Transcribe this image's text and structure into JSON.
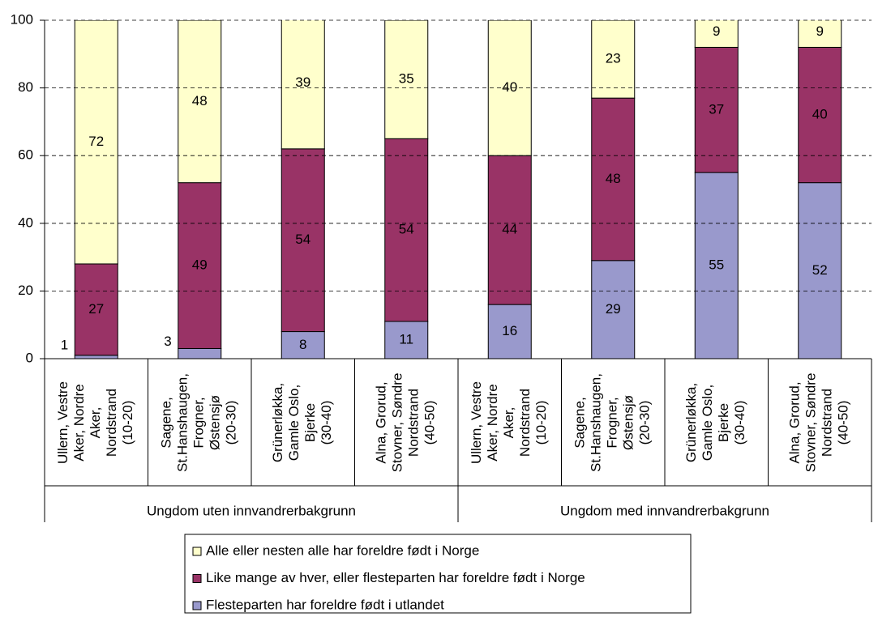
{
  "chart_data": {
    "type": "stacked_bar",
    "groups": [
      "Ungdom uten innvandrerbakgrunn",
      "Ungdom med innvandrerbakgrunn"
    ],
    "categories": [
      [
        "Ullern, Vestre",
        "Aker, Nordre",
        "Aker,",
        "Nordstrand",
        "(10-20)"
      ],
      [
        "Sagene,",
        "St.Hanshaugen,",
        "Frogner,",
        "Østensjø",
        "(20-30)"
      ],
      [
        "Grünerløkka,",
        "Gamle Oslo,",
        "Bjerke",
        "(30-40)"
      ],
      [
        "Alna, Grorud,",
        "Stovner, Søndre",
        "Nordstrand",
        "(40-50)"
      ],
      [
        "Ullern, Vestre",
        "Aker, Nordre",
        "Aker,",
        "Nordstrand",
        "(10-20)"
      ],
      [
        "Sagene,",
        "St.Hanshaugen,",
        "Frogner,",
        "Østensjø",
        "(20-30)"
      ],
      [
        "Grünerløkka,",
        "Gamle Oslo,",
        "Bjerke",
        "(30-40)"
      ],
      [
        "Alna, Grorud,",
        "Stovner, Søndre",
        "Nordstrand",
        "(40-50)"
      ]
    ],
    "series": [
      {
        "name": "Alle eller nesten alle har foreldre født i Norge",
        "color": "#ffffcc",
        "values": [
          72,
          48,
          39,
          35,
          40,
          23,
          9,
          9
        ]
      },
      {
        "name": "Like mange av hver, eller flesteparten har foreldre født i Norge",
        "color": "#993366",
        "values": [
          27,
          49,
          54,
          54,
          44,
          48,
          37,
          40
        ]
      },
      {
        "name": "Flesteparten har foreldre født i utlandet",
        "color": "#9999cc",
        "values": [
          1,
          3,
          8,
          11,
          16,
          29,
          55,
          52
        ]
      }
    ],
    "ylim": [
      0,
      100
    ],
    "yticks": [
      0,
      20,
      40,
      60,
      80,
      100
    ],
    "grid": true
  }
}
